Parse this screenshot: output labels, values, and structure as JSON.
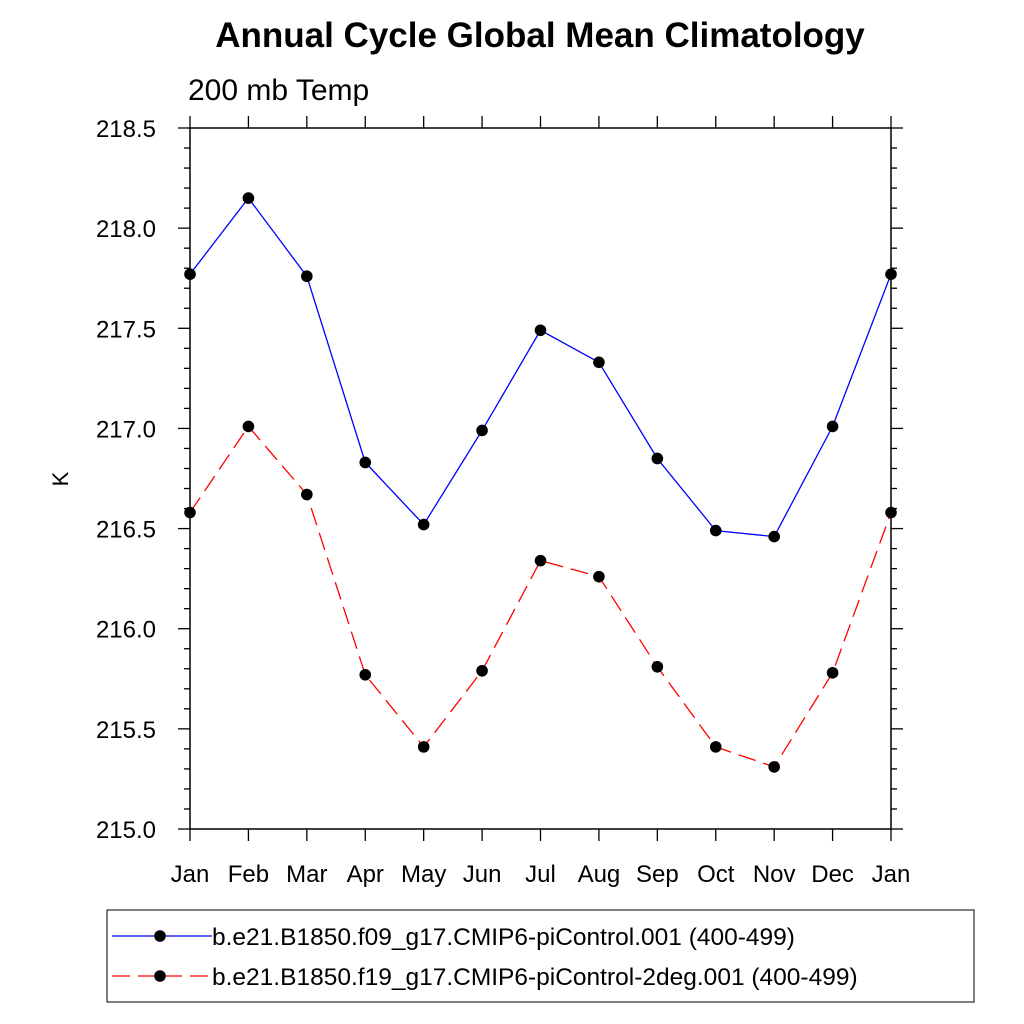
{
  "chart_data": {
    "type": "line",
    "title": "Annual Cycle Global Mean Climatology",
    "subtitle": "200 mb Temp",
    "ylabel": "K",
    "xlabel": "",
    "categories": [
      "Jan",
      "Feb",
      "Mar",
      "Apr",
      "May",
      "Jun",
      "Jul",
      "Aug",
      "Sep",
      "Oct",
      "Nov",
      "Dec",
      "Jan"
    ],
    "ylim": [
      215.0,
      218.5
    ],
    "yticks": [
      "215.0",
      "215.5",
      "216.0",
      "216.5",
      "217.0",
      "217.5",
      "218.0",
      "218.5"
    ],
    "legend_position": "bottom",
    "grid": false,
    "series": [
      {
        "name": "b.e21.B1850.f09_g17.CMIP6-piControl.001 (400-499)",
        "color": "#0000ff",
        "line_style": "solid",
        "marker": "filled-circle",
        "values": [
          217.77,
          218.15,
          217.76,
          216.83,
          216.52,
          216.99,
          217.49,
          217.33,
          216.85,
          216.49,
          216.46,
          217.01,
          217.77
        ]
      },
      {
        "name": "b.e21.B1850.f19_g17.CMIP6-piControl-2deg.001 (400-499)",
        "color": "#ff0000",
        "line_style": "dashed",
        "marker": "filled-circle",
        "values": [
          216.58,
          217.01,
          216.67,
          215.77,
          215.41,
          215.79,
          216.34,
          216.26,
          215.81,
          215.41,
          215.31,
          215.78,
          216.58
        ]
      }
    ]
  }
}
